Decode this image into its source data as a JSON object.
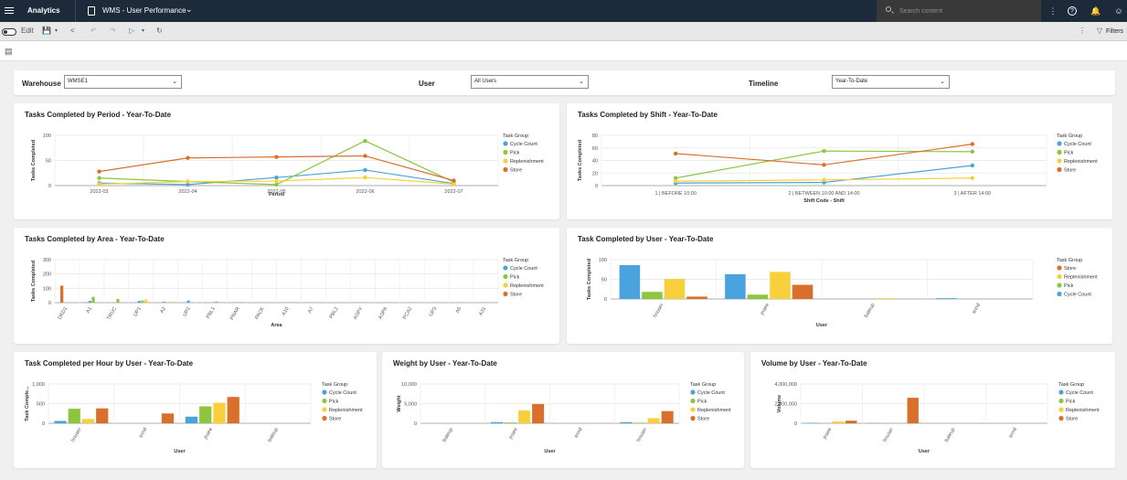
{
  "topbar": {
    "app_name": "Analytics",
    "report_title": "WMS - User Performance",
    "search_placeholder": "Search content"
  },
  "toolbar": {
    "edit_label": "Edit",
    "filters_label": "Filters"
  },
  "filters": {
    "warehouse": {
      "label": "Warehouse",
      "value": "WMSE1"
    },
    "user": {
      "label": "User",
      "value": "All Users"
    },
    "timeline": {
      "label": "Timeline",
      "value": "Year-To-Date"
    }
  },
  "colors": {
    "Cycle Count": "#4ba3dd",
    "Pick": "#8cc63f",
    "Replenishment": "#f7d03c",
    "Store": "#d96f2b"
  },
  "chart_data": [
    {
      "id": "period",
      "type": "line",
      "title": "Tasks Completed by Period - Year-To-Date",
      "xlabel": "Period",
      "ylabel": "Tasks Completed",
      "legend_title": "Task Group",
      "legend": [
        "Cycle Count",
        "Pick",
        "Replenishment",
        "Store"
      ],
      "categories": [
        "2022-03",
        "2022-04",
        "2022-05",
        "2022-06",
        "2022-07"
      ],
      "ylim": [
        0,
        100
      ],
      "yticks": [
        0,
        50,
        100
      ],
      "series": [
        {
          "name": "Cycle Count",
          "values": [
            5,
            2,
            16,
            31,
            4
          ]
        },
        {
          "name": "Pick",
          "values": [
            15,
            8,
            2,
            89,
            7
          ]
        },
        {
          "name": "Replenishment",
          "values": [
            3,
            8,
            9,
            16,
            3
          ]
        },
        {
          "name": "Store",
          "values": [
            28,
            55,
            57,
            59,
            10
          ]
        }
      ]
    },
    {
      "id": "shift",
      "type": "line",
      "title": "Tasks Completed by Shift - Year-To-Date",
      "xlabel": "Shift Code - Shift",
      "ylabel": "Tasks Completed",
      "legend_title": "Task Group",
      "legend": [
        "Cycle Count",
        "Pick",
        "Replenishment",
        "Store"
      ],
      "categories": [
        "1 | BEFORE 10:00",
        "2 | BETWEEN 10:00 AND 14:00",
        "3 | AFTER 14:00"
      ],
      "ylim": [
        0,
        80
      ],
      "yticks": [
        0,
        20,
        40,
        60,
        80
      ],
      "series": [
        {
          "name": "Cycle Count",
          "values": [
            4,
            5,
            32
          ]
        },
        {
          "name": "Pick",
          "values": [
            12,
            55,
            54
          ]
        },
        {
          "name": "Replenishment",
          "values": [
            7,
            9,
            12
          ]
        },
        {
          "name": "Store",
          "values": [
            51,
            33,
            66
          ]
        }
      ]
    },
    {
      "id": "area",
      "type": "bar",
      "title": "Tasks Completed by Area - Year-To-Date",
      "xlabel": "Area",
      "ylabel": "Tasks Completed",
      "legend_title": "Task Group",
      "legend": [
        "Cycle Count",
        "Pick",
        "Replenishment",
        "Store"
      ],
      "categories": [
        "DKD1",
        "A1",
        "TRUC",
        "UP1",
        "A2",
        "UP2",
        "PBL1",
        "PNAR",
        "PACK",
        "A10",
        "A7",
        "PBL2",
        "ASPY",
        "ASPA",
        "PCA2",
        "UP3",
        "A5",
        "A31"
      ],
      "ylim": [
        0,
        300
      ],
      "yticks": [
        0,
        100,
        200,
        300
      ],
      "series": [
        {
          "name": "Store",
          "values": [
            118,
            2,
            0,
            0,
            0,
            0,
            0,
            0,
            0,
            0,
            0,
            0,
            0,
            0,
            0,
            0,
            0,
            0
          ]
        },
        {
          "name": "Cycle Count",
          "values": [
            0,
            12,
            0,
            12,
            6,
            15,
            2,
            2,
            1,
            2,
            1,
            2,
            1,
            1,
            1,
            1,
            1,
            1
          ]
        },
        {
          "name": "Pick",
          "values": [
            0,
            40,
            25,
            15,
            0,
            0,
            8,
            4,
            3,
            2,
            2,
            1,
            1,
            1,
            1,
            1,
            1,
            1
          ]
        },
        {
          "name": "Replenishment",
          "values": [
            0,
            5,
            0,
            22,
            8,
            3,
            0,
            0,
            0,
            0,
            0,
            0,
            0,
            0,
            0,
            0,
            0,
            0
          ]
        }
      ]
    },
    {
      "id": "user",
      "type": "bar",
      "title": "Task Completed by User - Year-To-Date",
      "xlabel": "User",
      "ylabel": "Tasks Completed",
      "legend_title": "Task Group",
      "legend": [
        "Store",
        "Replenishment",
        "Pick",
        "Cycle Count"
      ],
      "categories": [
        "hnuser",
        "jnsee",
        "bateup",
        "snnd"
      ],
      "ylim": [
        0,
        100
      ],
      "yticks": [
        0,
        50,
        100
      ],
      "series": [
        {
          "name": "Cycle Count",
          "values": [
            86,
            63,
            0,
            2
          ]
        },
        {
          "name": "Pick",
          "values": [
            18,
            11,
            0,
            0
          ]
        },
        {
          "name": "Replenishment",
          "values": [
            51,
            69,
            2,
            0
          ]
        },
        {
          "name": "Store",
          "values": [
            6,
            36,
            0,
            0
          ]
        }
      ]
    },
    {
      "id": "perhour",
      "type": "bar",
      "title": "Task Completed per Hour by User - Year-To-Date",
      "xlabel": "User",
      "ylabel": "Task Comple...",
      "legend_title": "Task Group",
      "legend": [
        "Cycle Count",
        "Pick",
        "Replenishment",
        "Store"
      ],
      "categories": [
        "hnuser",
        "snnd",
        "jnsee",
        "bateup"
      ],
      "ylim": [
        0,
        1000
      ],
      "yticks": [
        0,
        500,
        1000
      ],
      "ytick_labels": [
        "0",
        "500",
        "1,000"
      ],
      "series": [
        {
          "name": "Cycle Count",
          "values": [
            60,
            0,
            170,
            0
          ]
        },
        {
          "name": "Pick",
          "values": [
            370,
            0,
            430,
            0
          ]
        },
        {
          "name": "Replenishment",
          "values": [
            110,
            0,
            520,
            0
          ]
        },
        {
          "name": "Store",
          "values": [
            380,
            250,
            670,
            0
          ]
        }
      ]
    },
    {
      "id": "weight",
      "type": "bar",
      "title": "Weight by User - Year-To-Date",
      "xlabel": "User",
      "ylabel": "Weight",
      "legend_title": "Task Group",
      "legend": [
        "Cycle Count",
        "Pick",
        "Replenishment",
        "Store"
      ],
      "categories": [
        "bateup",
        "jnsee",
        "snnd",
        "hnuser"
      ],
      "ylim": [
        0,
        10000
      ],
      "yticks": [
        0,
        5000,
        10000
      ],
      "ytick_labels": [
        "0",
        "5,000",
        "10,000"
      ],
      "series": [
        {
          "name": "Cycle Count",
          "values": [
            0,
            300,
            0,
            300
          ]
        },
        {
          "name": "Pick",
          "values": [
            0,
            200,
            0,
            150
          ]
        },
        {
          "name": "Replenishment",
          "values": [
            0,
            3300,
            0,
            1300
          ]
        },
        {
          "name": "Store",
          "values": [
            0,
            4900,
            0,
            3100
          ]
        }
      ]
    },
    {
      "id": "volume",
      "type": "bar",
      "title": "Volume by User - Year-To-Date",
      "xlabel": "User",
      "ylabel": "Volume",
      "legend_title": "Task Group",
      "legend": [
        "Cycle Count",
        "Pick",
        "Replenishment",
        "Store"
      ],
      "categories": [
        "jnsee",
        "hnuser",
        "bateup",
        "snnd"
      ],
      "ylim": [
        0,
        4000000
      ],
      "yticks": [
        0,
        2000000,
        4000000
      ],
      "ytick_labels": [
        "0",
        "2,000,000",
        "4,000,000"
      ],
      "series": [
        {
          "name": "Cycle Count",
          "values": [
            50000,
            30000,
            0,
            0
          ]
        },
        {
          "name": "Pick",
          "values": [
            0,
            0,
            0,
            0
          ]
        },
        {
          "name": "Replenishment",
          "values": [
            200000,
            0,
            0,
            0
          ]
        },
        {
          "name": "Store",
          "values": [
            270000,
            2600000,
            0,
            0
          ]
        }
      ]
    }
  ]
}
